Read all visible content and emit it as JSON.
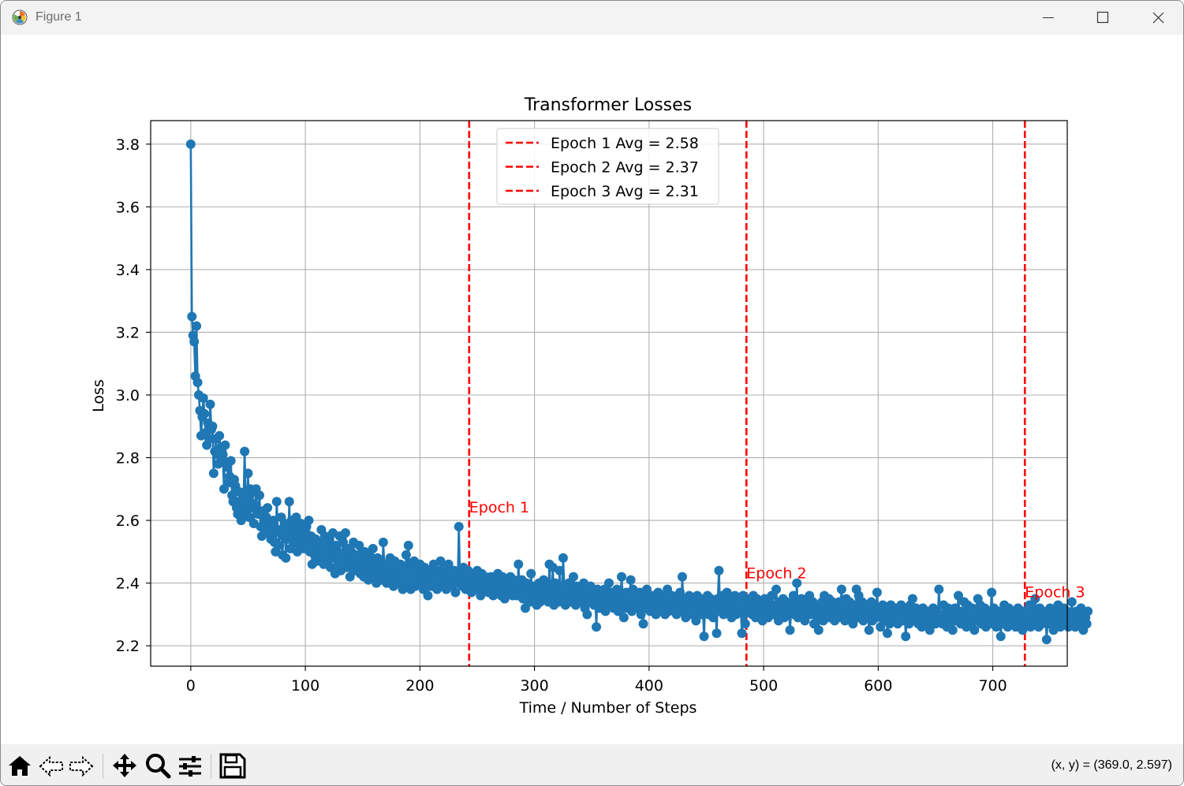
{
  "window": {
    "title": "Figure 1",
    "icons": {
      "app": "matplotlib-icon",
      "minimize": "minimize-icon",
      "maximize": "maximize-icon",
      "close": "close-icon"
    }
  },
  "toolbar": {
    "tools": [
      "home-icon",
      "back-icon",
      "forward-icon",
      "pan-icon",
      "zoom-icon",
      "configure-subplots-icon",
      "save-icon"
    ],
    "coordinates": "(x, y) = (369.0, 2.597)"
  },
  "chart_data": {
    "type": "line",
    "title": "Transformer Losses",
    "xlabel": "Time / Number of Steps",
    "ylabel": "Loss",
    "xlim": [
      -35,
      765
    ],
    "ylim": [
      2.135,
      3.875
    ],
    "xticks": [
      0,
      100,
      200,
      300,
      400,
      500,
      600,
      700
    ],
    "yticks": [
      2.2,
      2.4,
      2.6,
      2.8,
      3.0,
      3.2,
      3.4,
      3.6,
      3.8
    ],
    "xtick_labels": [
      "0",
      "100",
      "200",
      "300",
      "400",
      "500",
      "600",
      "700"
    ],
    "ytick_labels": [
      "2.2",
      "2.4",
      "2.6",
      "2.8",
      "3.0",
      "3.2",
      "3.4",
      "3.6",
      "3.8"
    ],
    "grid": true,
    "legend_position": "top-center",
    "series": [
      {
        "color": "#1f77b4",
        "marker": "circle",
        "x_start": 0,
        "x_step": 1,
        "values": [
          3.8,
          3.25,
          3.19,
          3.17,
          3.06,
          3.22,
          3.04,
          3.0,
          2.95,
          2.87,
          2.93,
          2.99,
          2.94,
          2.88,
          2.84,
          2.91,
          2.86,
          2.97,
          2.89,
          2.9,
          2.75,
          2.82,
          2.86,
          2.81,
          2.78,
          2.87,
          2.83,
          2.79,
          2.81,
          2.7,
          2.84,
          2.78,
          2.77,
          2.72,
          2.74,
          2.79,
          2.68,
          2.66,
          2.73,
          2.71,
          2.64,
          2.62,
          2.66,
          2.69,
          2.6,
          2.63,
          2.65,
          2.82,
          2.67,
          2.62,
          2.75,
          2.61,
          2.7,
          2.64,
          2.69,
          2.59,
          2.65,
          2.7,
          2.63,
          2.62,
          2.68,
          2.58,
          2.55,
          2.63,
          2.6,
          2.57,
          2.61,
          2.64,
          2.56,
          2.58,
          2.54,
          2.59,
          2.6,
          2.53,
          2.5,
          2.66,
          2.57,
          2.52,
          2.56,
          2.61,
          2.49,
          2.55,
          2.59,
          2.48,
          2.57,
          2.54,
          2.66,
          2.51,
          2.6,
          2.55,
          2.58,
          2.53,
          2.61,
          2.5,
          2.57,
          2.52,
          2.59,
          2.54,
          2.56,
          2.51,
          2.55,
          2.58,
          2.53,
          2.6,
          2.5,
          2.55,
          2.46,
          2.52,
          2.49,
          2.54,
          2.47,
          2.51,
          2.53,
          2.48,
          2.57,
          2.5,
          2.46,
          2.55,
          2.49,
          2.52,
          2.47,
          2.54,
          2.45,
          2.5,
          2.56,
          2.48,
          2.43,
          2.52,
          2.5,
          2.46,
          2.55,
          2.44,
          2.49,
          2.53,
          2.47,
          2.56,
          2.45,
          2.51,
          2.48,
          2.42,
          2.5,
          2.46,
          2.53,
          2.44,
          2.49,
          2.47,
          2.45,
          2.52,
          2.43,
          2.48,
          2.46,
          2.42,
          2.5,
          2.44,
          2.47,
          2.41,
          2.49,
          2.45,
          2.43,
          2.51,
          2.42,
          2.46,
          2.4,
          2.48,
          2.44,
          2.42,
          2.47,
          2.41,
          2.53,
          2.45,
          2.43,
          2.4,
          2.46,
          2.42,
          2.48,
          2.41,
          2.44,
          2.39,
          2.47,
          2.42,
          2.45,
          2.4,
          2.43,
          2.46,
          2.41,
          2.38,
          2.44,
          2.42,
          2.49,
          2.4,
          2.52,
          2.43,
          2.38,
          2.45,
          2.41,
          2.47,
          2.39,
          2.44,
          2.42,
          2.4,
          2.46,
          2.41,
          2.43,
          2.38,
          2.45,
          2.4,
          2.42,
          2.36,
          2.44,
          2.41,
          2.39,
          2.43,
          2.46,
          2.4,
          2.42,
          2.38,
          2.44,
          2.41,
          2.47,
          2.39,
          2.43,
          2.4,
          2.45,
          2.38,
          2.42,
          2.46,
          2.4,
          2.43,
          2.39,
          2.41,
          2.44,
          2.37,
          2.42,
          2.4,
          2.58,
          2.41,
          2.43,
          2.39,
          2.45,
          2.4,
          2.38,
          2.42,
          2.44,
          2.39,
          2.41,
          2.37,
          2.43,
          2.4,
          2.42,
          2.38,
          2.44,
          2.39,
          2.41,
          2.36,
          2.43,
          2.4,
          2.38,
          2.42,
          2.39,
          2.41,
          2.37,
          2.4,
          2.42,
          2.38,
          2.36,
          2.41,
          2.39,
          2.37,
          2.43,
          2.38,
          2.4,
          2.36,
          2.42,
          2.39,
          2.35,
          2.41,
          2.38,
          2.4,
          2.37,
          2.42,
          2.39,
          2.36,
          2.41,
          2.38,
          2.4,
          2.36,
          2.46,
          2.39,
          2.37,
          2.41,
          2.35,
          2.39,
          2.32,
          2.4,
          2.38,
          2.36,
          2.34,
          2.43,
          2.37,
          2.39,
          2.35,
          2.38,
          2.33,
          2.36,
          2.4,
          2.34,
          2.38,
          2.36,
          2.41,
          2.35,
          2.37,
          2.39,
          2.34,
          2.46,
          2.38,
          2.36,
          2.45,
          2.33,
          2.4,
          2.36,
          2.38,
          2.34,
          2.44,
          2.37,
          2.35,
          2.48,
          2.39,
          2.33,
          2.37,
          2.35,
          2.4,
          2.34,
          2.38,
          2.36,
          2.42,
          2.35,
          2.33,
          2.39,
          2.36,
          2.38,
          2.34,
          2.37,
          2.35,
          2.4,
          2.32,
          2.38,
          2.3,
          2.36,
          2.34,
          2.39,
          2.35,
          2.37,
          2.33,
          2.36,
          2.26,
          2.38,
          2.34,
          2.32,
          2.37,
          2.35,
          2.33,
          2.38,
          2.31,
          2.36,
          2.34,
          2.4,
          2.33,
          2.37,
          2.35,
          2.32,
          2.36,
          2.34,
          2.38,
          2.31,
          2.35,
          2.33,
          2.42,
          2.36,
          2.29,
          2.34,
          2.37,
          2.32,
          2.35,
          2.33,
          2.41,
          2.31,
          2.38,
          2.34,
          2.36,
          2.32,
          2.35,
          2.33,
          2.37,
          2.3,
          2.34,
          2.27,
          2.36,
          2.32,
          2.38,
          2.33,
          2.35,
          2.31,
          2.34,
          2.36,
          2.32,
          2.35,
          2.3,
          2.33,
          2.37,
          2.31,
          2.34,
          2.36,
          2.32,
          2.35,
          2.3,
          2.33,
          2.38,
          2.31,
          2.34,
          2.32,
          2.36,
          2.33,
          2.31,
          2.35,
          2.3,
          2.34,
          2.32,
          2.37,
          2.31,
          2.42,
          2.33,
          2.35,
          2.29,
          2.34,
          2.32,
          2.36,
          2.3,
          2.33,
          2.35,
          2.31,
          2.34,
          2.28,
          2.36,
          2.32,
          2.33,
          2.35,
          2.3,
          2.31,
          2.23,
          2.34,
          2.32,
          2.36,
          2.3,
          2.33,
          2.35,
          2.31,
          2.29,
          2.34,
          2.32,
          2.24,
          2.35,
          2.44,
          2.31,
          2.33,
          2.36,
          2.3,
          2.32,
          2.34,
          2.37,
          2.31,
          2.33,
          2.35,
          2.29,
          2.32,
          2.34,
          2.36,
          2.3,
          2.33,
          2.31,
          2.35,
          2.32,
          2.24,
          2.36,
          2.3,
          2.27,
          2.33,
          2.35,
          2.31,
          2.34,
          2.32,
          2.3,
          2.36,
          2.33,
          2.29,
          2.35,
          2.31,
          2.33,
          2.3,
          2.34,
          2.28,
          2.32,
          2.35,
          2.31,
          2.33,
          2.29,
          2.34,
          2.31,
          2.36,
          2.32,
          2.3,
          2.33,
          2.38,
          2.31,
          2.28,
          2.34,
          2.3,
          2.32,
          2.35,
          2.29,
          2.31,
          2.34,
          2.3,
          2.33,
          2.25,
          2.31,
          2.34,
          2.36,
          2.3,
          2.32,
          2.4,
          2.29,
          2.33,
          2.31,
          2.35,
          2.3,
          2.32,
          2.28,
          2.34,
          2.31,
          2.33,
          2.36,
          2.3,
          2.32,
          2.34,
          2.27,
          2.31,
          2.33,
          2.29,
          2.25,
          2.32,
          2.3,
          2.34,
          2.28,
          2.36,
          2.31,
          2.33,
          2.3,
          2.35,
          2.29,
          2.32,
          2.34,
          2.3,
          2.28,
          2.33,
          2.31,
          2.29,
          2.34,
          2.32,
          2.38,
          2.3,
          2.33,
          2.28,
          2.35,
          2.31,
          2.29,
          2.34,
          2.32,
          2.3,
          2.27,
          2.33,
          2.31,
          2.38,
          2.29,
          2.36,
          2.32,
          2.3,
          2.34,
          2.28,
          2.31,
          2.33,
          2.29,
          2.32,
          2.25,
          2.3,
          2.34,
          2.28,
          2.31,
          2.33,
          2.29,
          2.37,
          2.3,
          2.32,
          2.26,
          2.31,
          2.33,
          2.28,
          2.3,
          2.32,
          2.24,
          2.31,
          2.27,
          2.33,
          2.29,
          2.31,
          2.28,
          2.32,
          2.3,
          2.27,
          2.31,
          2.29,
          2.33,
          2.28,
          2.3,
          2.32,
          2.23,
          2.29,
          2.31,
          2.27,
          2.33,
          2.29,
          2.35,
          2.3,
          2.28,
          2.32,
          2.3,
          2.27,
          2.31,
          2.29,
          2.26,
          2.32,
          2.28,
          2.3,
          2.27,
          2.31,
          2.29,
          2.25,
          2.3,
          2.28,
          2.32,
          2.29,
          2.27,
          2.31,
          2.28,
          2.38,
          2.29,
          2.3,
          2.27,
          2.33,
          2.28,
          2.3,
          2.26,
          2.32,
          2.29,
          2.27,
          2.31,
          2.25,
          2.29,
          2.32,
          2.28,
          2.3,
          2.36,
          2.29,
          2.27,
          2.31,
          2.28,
          2.34,
          2.29,
          2.26,
          2.33,
          2.28,
          2.3,
          2.27,
          2.32,
          2.29,
          2.25,
          2.31,
          2.28,
          2.35,
          2.29,
          2.33,
          2.27,
          2.3,
          2.28,
          2.32,
          2.26,
          2.29,
          2.31,
          2.27,
          2.3,
          2.37,
          2.28,
          2.32,
          2.29,
          2.26,
          2.3,
          2.28,
          2.31,
          2.23,
          2.29,
          2.27,
          2.33,
          2.28,
          2.3,
          2.26,
          2.32,
          2.29,
          2.27,
          2.31,
          2.28,
          2.3,
          2.26,
          2.29,
          2.32,
          2.27,
          2.3,
          2.28,
          2.25,
          2.31,
          2.29,
          2.27,
          2.3,
          2.28,
          2.33,
          2.26,
          2.29,
          2.31,
          2.27,
          2.35,
          2.28,
          2.3,
          2.26,
          2.32,
          2.29,
          2.27,
          2.31,
          2.28,
          2.3,
          2.22,
          2.29,
          2.27,
          2.32,
          2.28,
          2.3,
          2.25,
          2.29,
          2.31,
          2.27,
          2.33,
          2.28,
          2.26,
          2.3,
          2.28,
          2.32,
          2.27,
          2.29,
          2.31,
          2.26,
          2.3,
          2.28,
          2.34,
          2.27,
          2.29,
          2.26,
          2.31,
          2.28,
          2.3,
          2.27,
          2.32,
          2.28,
          2.25,
          2.3,
          2.29,
          2.27,
          2.31
        ]
      }
    ],
    "epoch_lines": [
      {
        "x": 243,
        "legend": "Epoch 1 Avg = 2.58",
        "annotation": "Epoch 1",
        "annotation_y": 2.625
      },
      {
        "x": 485,
        "legend": "Epoch 2 Avg = 2.37",
        "annotation": "Epoch 2",
        "annotation_y": 2.415
      },
      {
        "x": 728,
        "legend": "Epoch 3 Avg = 2.31",
        "annotation": "Epoch 3",
        "annotation_y": 2.355
      }
    ],
    "line_color": "#1f77b4",
    "epoch_color": "#ff0000"
  }
}
